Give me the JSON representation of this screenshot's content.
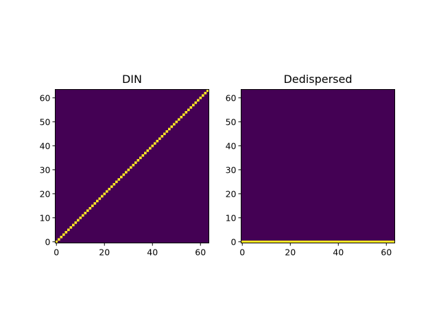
{
  "chart_data": [
    {
      "type": "heatmap",
      "title": "DIN",
      "xlabel": "",
      "ylabel": "",
      "size": 64,
      "pattern": "diagonal",
      "values_description_legend": "",
      "xlim": [
        -0.5,
        63.5
      ],
      "ylim": [
        -0.5,
        63.5
      ],
      "x_ticks": [
        0,
        20,
        40,
        60
      ],
      "y_ticks": [
        0,
        10,
        20,
        30,
        40,
        50,
        60
      ],
      "x_tick_labels": [
        "0",
        "20",
        "40",
        "60"
      ],
      "y_tick_labels": [
        "0",
        "10",
        "20",
        "30",
        "40",
        "50",
        "60"
      ],
      "bright_cells": "row == column",
      "origin": "lower"
    },
    {
      "type": "heatmap",
      "title": "Dedispersed",
      "xlabel": "",
      "ylabel": "",
      "size": 64,
      "pattern": "row0",
      "xlim": [
        -0.5,
        63.5
      ],
      "ylim": [
        -0.5,
        63.5
      ],
      "x_ticks": [
        0,
        20,
        40,
        60
      ],
      "y_ticks": [
        0,
        10,
        20,
        30,
        40,
        50,
        60
      ],
      "x_tick_labels": [
        "0",
        "20",
        "40",
        "60"
      ],
      "y_tick_labels": [
        "0",
        "10",
        "20",
        "30",
        "40",
        "50",
        "60"
      ],
      "bright_cells": "row == 0",
      "origin": "lower"
    }
  ],
  "colors": {
    "background": "#440154",
    "highlight": "#fde725",
    "axis": "#000000"
  }
}
